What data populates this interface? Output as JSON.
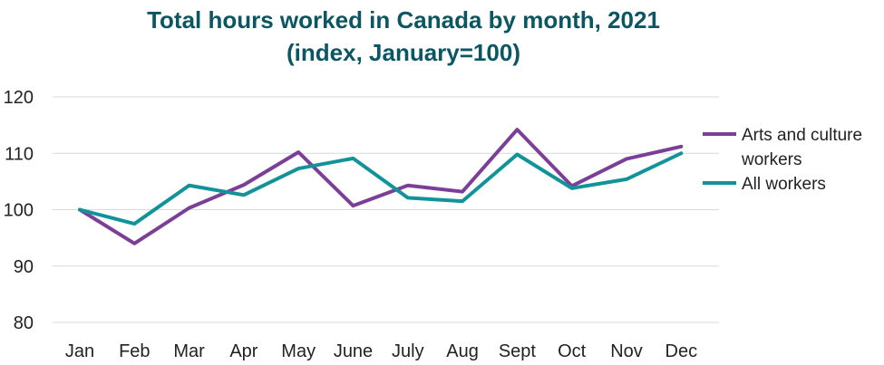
{
  "chart_data": {
    "type": "line",
    "title_line1": "Total hours worked in Canada by month, 2021",
    "title_line2": "(index, January=100)",
    "xlabel": "",
    "ylabel": "",
    "categories": [
      "Jan",
      "Feb",
      "Mar",
      "Apr",
      "May",
      "June",
      "July",
      "Aug",
      "Sept",
      "Oct",
      "Nov",
      "Dec"
    ],
    "ylim": [
      80,
      120
    ],
    "yticks": [
      80,
      90,
      100,
      110,
      120
    ],
    "grid": true,
    "legend_position": "right",
    "series": [
      {
        "name": "Arts and culture workers",
        "legend_lines": [
          "Arts and culture",
          "workers"
        ],
        "color": "#7b3f98",
        "values": [
          100,
          94,
          100.3,
          104.4,
          110.2,
          100.7,
          104.3,
          103.2,
          114.2,
          104.2,
          109,
          111.2
        ]
      },
      {
        "name": "All workers",
        "legend_lines": [
          "All workers"
        ],
        "color": "#12939a",
        "values": [
          100,
          97.5,
          104.3,
          102.6,
          107.3,
          109.1,
          102.1,
          101.5,
          109.8,
          103.8,
          105.4,
          110
        ]
      }
    ]
  }
}
